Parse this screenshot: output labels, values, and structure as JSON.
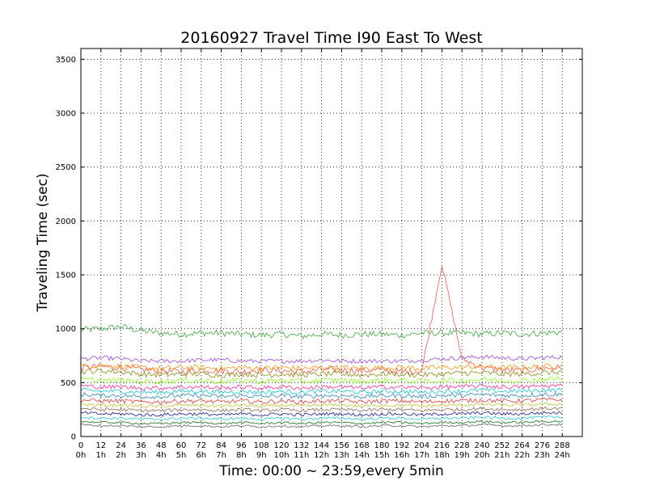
{
  "chart_data": {
    "type": "line",
    "title": "20160927 Travel Time I90 East To West",
    "xlabel": "Time: 00:00 ~ 23:59,every 5min",
    "ylabel": "Traveling Time (sec)",
    "xlim": [
      0,
      300
    ],
    "ylim": [
      0,
      3600
    ],
    "grid": true,
    "x_ticks": [
      0,
      12,
      24,
      36,
      48,
      60,
      72,
      84,
      96,
      108,
      120,
      132,
      144,
      156,
      168,
      180,
      192,
      204,
      216,
      228,
      240,
      252,
      264,
      276,
      288
    ],
    "x_tick_labels": [
      "0",
      "12",
      "24",
      "36",
      "48",
      "60",
      "72",
      "84",
      "96",
      "108",
      "120",
      "132",
      "144",
      "156",
      "168",
      "180",
      "192",
      "204",
      "216",
      "228",
      "240",
      "252",
      "264",
      "276",
      "288"
    ],
    "x_tick_sublabels": [
      "0h",
      "1h",
      "2h",
      "3h",
      "4h",
      "5h",
      "6h",
      "7h",
      "8h",
      "9h",
      "10h",
      "11h",
      "12h",
      "13h",
      "14h",
      "15h",
      "16h",
      "17h",
      "18h",
      "19h",
      "20h",
      "21h",
      "22h",
      "23h",
      "24h"
    ],
    "y_ticks": [
      0,
      500,
      1000,
      1500,
      2000,
      2500,
      3000,
      3500
    ],
    "y_tick_labels": [
      "0",
      "500",
      "1000",
      "1500",
      "2000",
      "2500",
      "3000",
      "3500"
    ],
    "series": [
      {
        "color": "#2ca02c",
        "base": 970,
        "noise": 30,
        "x": [
          0,
          12,
          24,
          36,
          48,
          60,
          72,
          84,
          96,
          108,
          120,
          132,
          144,
          156,
          168,
          180,
          192,
          204,
          216,
          228,
          240,
          252,
          264,
          276,
          288
        ],
        "values": [
          990,
          1000,
          1020,
          980,
          960,
          950,
          960,
          960,
          950,
          940,
          950,
          930,
          950,
          940,
          950,
          950,
          940,
          960,
          960,
          960,
          950,
          960,
          950,
          960,
          970
        ]
      },
      {
        "color": "#e74c3c",
        "base": 620,
        "noise": 30,
        "x": [
          0,
          12,
          24,
          36,
          48,
          60,
          72,
          84,
          96,
          108,
          120,
          132,
          144,
          156,
          168,
          180,
          192,
          204,
          216,
          228,
          240,
          252,
          264,
          276,
          288
        ],
        "values": [
          640,
          650,
          640,
          620,
          610,
          600,
          620,
          610,
          600,
          620,
          610,
          600,
          620,
          620,
          610,
          620,
          600,
          610,
          1600,
          720,
          640,
          620,
          610,
          630,
          640
        ]
      },
      {
        "color": "#9b30d9",
        "base": 700,
        "noise": 20,
        "x": [
          0,
          12,
          24,
          36,
          48,
          60,
          72,
          84,
          96,
          108,
          120,
          132,
          144,
          156,
          168,
          180,
          192,
          204,
          216,
          228,
          240,
          252,
          264,
          276,
          288
        ],
        "values": [
          720,
          730,
          720,
          700,
          700,
          700,
          710,
          710,
          700,
          700,
          700,
          700,
          710,
          700,
          700,
          700,
          700,
          710,
          720,
          730,
          740,
          730,
          720,
          730,
          740
        ]
      },
      {
        "color": "#ff8c00",
        "base": 640,
        "noise": 25,
        "x": [
          0,
          12,
          24,
          36,
          48,
          60,
          72,
          84,
          96,
          108,
          120,
          132,
          144,
          156,
          168,
          180,
          192,
          204,
          216,
          228,
          240,
          252,
          264,
          276,
          288
        ],
        "values": [
          650,
          660,
          650,
          640,
          630,
          640,
          640,
          630,
          640,
          630,
          640,
          630,
          640,
          640,
          630,
          640,
          640,
          630,
          640,
          640,
          650,
          640,
          640,
          650,
          660
        ]
      },
      {
        "color": "#7f7f00",
        "base": 580,
        "noise": 25,
        "x": [
          0,
          12,
          24,
          36,
          48,
          60,
          72,
          84,
          96,
          108,
          120,
          132,
          144,
          156,
          168,
          180,
          192,
          204,
          216,
          228,
          240,
          252,
          264,
          276,
          288
        ],
        "values": [
          600,
          610,
          600,
          580,
          570,
          580,
          580,
          570,
          580,
          570,
          580,
          570,
          580,
          580,
          570,
          580,
          580,
          570,
          580,
          590,
          590,
          580,
          580,
          590,
          600
        ]
      },
      {
        "color": "#00bcd4",
        "base": 420,
        "noise": 20,
        "x": [
          0,
          12,
          24,
          36,
          48,
          60,
          72,
          84,
          96,
          108,
          120,
          132,
          144,
          156,
          168,
          180,
          192,
          204,
          216,
          228,
          240,
          252,
          264,
          276,
          288
        ],
        "values": [
          430,
          420,
          420,
          410,
          410,
          420,
          420,
          410,
          420,
          410,
          420,
          410,
          420,
          420,
          410,
          420,
          420,
          410,
          420,
          420,
          430,
          420,
          420,
          430,
          430
        ]
      },
      {
        "color": "#1f77b4",
        "base": 380,
        "noise": 20,
        "x": [
          0,
          12,
          24,
          36,
          48,
          60,
          72,
          84,
          96,
          108,
          120,
          132,
          144,
          156,
          168,
          180,
          192,
          204,
          216,
          228,
          240,
          252,
          264,
          276,
          288
        ],
        "values": [
          390,
          380,
          380,
          370,
          370,
          380,
          380,
          370,
          380,
          370,
          380,
          370,
          380,
          380,
          370,
          380,
          380,
          370,
          380,
          380,
          390,
          380,
          380,
          390,
          390
        ]
      },
      {
        "color": "#d62728",
        "base": 330,
        "noise": 20,
        "x": [
          0,
          12,
          24,
          36,
          48,
          60,
          72,
          84,
          96,
          108,
          120,
          132,
          144,
          156,
          168,
          180,
          192,
          204,
          216,
          228,
          240,
          252,
          264,
          276,
          288
        ],
        "values": [
          340,
          330,
          330,
          320,
          320,
          330,
          330,
          320,
          330,
          320,
          330,
          320,
          330,
          330,
          320,
          330,
          330,
          320,
          330,
          330,
          340,
          330,
          330,
          340,
          340
        ]
      },
      {
        "color": "#bcbd22",
        "base": 290,
        "noise": 15,
        "x": [
          0,
          12,
          24,
          36,
          48,
          60,
          72,
          84,
          96,
          108,
          120,
          132,
          144,
          156,
          168,
          180,
          192,
          204,
          216,
          228,
          240,
          252,
          264,
          276,
          288
        ],
        "values": [
          300,
          290,
          290,
          280,
          280,
          290,
          290,
          280,
          290,
          280,
          290,
          280,
          290,
          290,
          280,
          290,
          290,
          280,
          290,
          290,
          300,
          290,
          290,
          300,
          300
        ]
      },
      {
        "color": "#8c564b",
        "base": 250,
        "noise": 15,
        "x": [
          0,
          12,
          24,
          36,
          48,
          60,
          72,
          84,
          96,
          108,
          120,
          132,
          144,
          156,
          168,
          180,
          192,
          204,
          216,
          228,
          240,
          252,
          264,
          276,
          288
        ],
        "values": [
          260,
          250,
          250,
          240,
          240,
          250,
          250,
          240,
          250,
          240,
          250,
          240,
          250,
          250,
          240,
          250,
          250,
          240,
          250,
          250,
          260,
          250,
          250,
          260,
          260
        ]
      },
      {
        "color": "#000080",
        "base": 210,
        "noise": 15,
        "x": [
          0,
          12,
          24,
          36,
          48,
          60,
          72,
          84,
          96,
          108,
          120,
          132,
          144,
          156,
          168,
          180,
          192,
          204,
          216,
          228,
          240,
          252,
          264,
          276,
          288
        ],
        "values": [
          220,
          210,
          210,
          200,
          200,
          210,
          210,
          200,
          210,
          200,
          210,
          200,
          210,
          210,
          200,
          210,
          210,
          200,
          210,
          210,
          220,
          210,
          210,
          220,
          220
        ]
      },
      {
        "color": "#17becf",
        "base": 170,
        "noise": 12,
        "x": [
          0,
          12,
          24,
          36,
          48,
          60,
          72,
          84,
          96,
          108,
          120,
          132,
          144,
          156,
          168,
          180,
          192,
          204,
          216,
          228,
          240,
          252,
          264,
          276,
          288
        ],
        "values": [
          180,
          170,
          170,
          160,
          160,
          170,
          170,
          160,
          170,
          160,
          170,
          160,
          170,
          170,
          160,
          170,
          170,
          160,
          170,
          170,
          180,
          170,
          170,
          180,
          180
        ]
      },
      {
        "color": "#006400",
        "base": 130,
        "noise": 10,
        "x": [
          0,
          12,
          24,
          36,
          48,
          60,
          72,
          84,
          96,
          108,
          120,
          132,
          144,
          156,
          168,
          180,
          192,
          204,
          216,
          228,
          240,
          252,
          264,
          276,
          288
        ],
        "values": [
          140,
          130,
          130,
          120,
          120,
          130,
          130,
          120,
          130,
          120,
          130,
          120,
          130,
          130,
          120,
          130,
          130,
          120,
          130,
          130,
          140,
          130,
          130,
          140,
          140
        ]
      },
      {
        "color": "#555555",
        "base": 100,
        "noise": 10,
        "x": [
          0,
          12,
          24,
          36,
          48,
          60,
          72,
          84,
          96,
          108,
          120,
          132,
          144,
          156,
          168,
          180,
          192,
          204,
          216,
          228,
          240,
          252,
          264,
          276,
          288
        ],
        "values": [
          110,
          100,
          100,
          90,
          90,
          100,
          100,
          90,
          100,
          90,
          100,
          90,
          100,
          100,
          90,
          100,
          100,
          90,
          100,
          100,
          110,
          100,
          100,
          110,
          110
        ]
      },
      {
        "color": "#7fff00",
        "base": 520,
        "noise": 25,
        "x": [
          0,
          12,
          24,
          36,
          48,
          60,
          72,
          84,
          96,
          108,
          120,
          132,
          144,
          156,
          168,
          180,
          192,
          204,
          216,
          228,
          240,
          252,
          264,
          276,
          288
        ],
        "values": [
          530,
          520,
          520,
          510,
          510,
          520,
          520,
          510,
          520,
          510,
          520,
          510,
          520,
          520,
          510,
          520,
          520,
          510,
          520,
          520,
          530,
          520,
          520,
          530,
          540
        ]
      },
      {
        "color": "#ff1493",
        "base": 460,
        "noise": 20,
        "x": [
          0,
          12,
          24,
          36,
          48,
          60,
          72,
          84,
          96,
          108,
          120,
          132,
          144,
          156,
          168,
          180,
          192,
          204,
          216,
          228,
          240,
          252,
          264,
          276,
          288
        ],
        "values": [
          470,
          460,
          460,
          450,
          450,
          460,
          460,
          450,
          460,
          450,
          460,
          450,
          460,
          460,
          450,
          460,
          460,
          450,
          460,
          460,
          470,
          460,
          460,
          470,
          470
        ]
      }
    ]
  }
}
